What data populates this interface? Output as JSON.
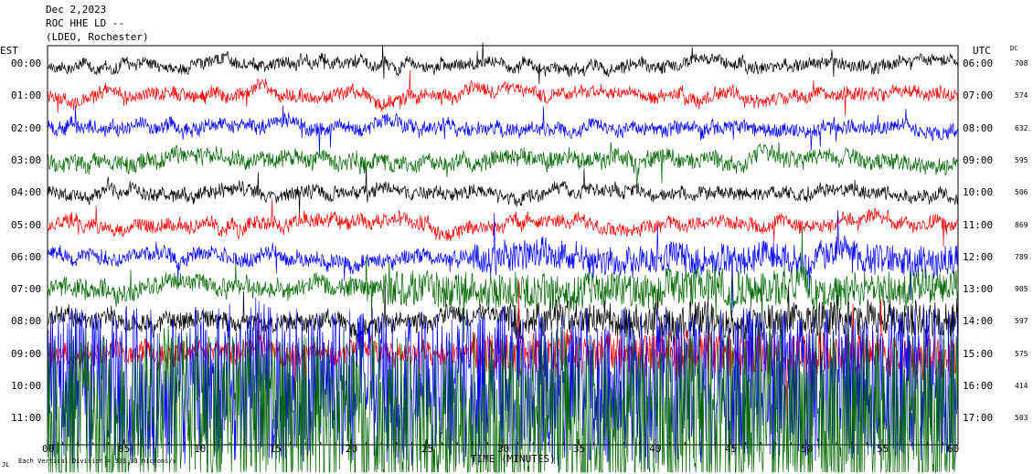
{
  "header": {
    "line1": "Dec 2,2023",
    "line2": "ROC HHE LD --",
    "line3": "(LDEO, Rochester)"
  },
  "chart_data": {
    "type": "line",
    "title": "ROC HHE LD --",
    "date": "Dec 2,2023",
    "network": "(LDEO, Rochester)",
    "left_axis_label": "EST",
    "right_axis_label": "UTC",
    "dc_label": "DC",
    "xlabel": "TIME (MINUTES)",
    "xlim": [
      0,
      60
    ],
    "x_ticks": [
      {
        "value": 0,
        "label": "00"
      },
      {
        "value": 5,
        "label": "05"
      },
      {
        "value": 10,
        "label": "10"
      },
      {
        "value": 15,
        "label": "15"
      },
      {
        "value": 20,
        "label": "20"
      },
      {
        "value": 25,
        "label": "25"
      },
      {
        "value": 30,
        "label": "30"
      },
      {
        "value": 35,
        "label": "35"
      },
      {
        "value": 40,
        "label": "40"
      },
      {
        "value": 45,
        "label": "45"
      },
      {
        "value": 50,
        "label": "50"
      },
      {
        "value": 55,
        "label": "55"
      },
      {
        "value": 60,
        "label": "60"
      }
    ],
    "footer_note": "Each Vertical Division = 333.33 microns/s",
    "corner_mark": "JL",
    "series": [
      {
        "est": "00:00",
        "utc": "06:00",
        "dc": "708",
        "color": "#000000",
        "activity": 1.0,
        "surge_start_min": null
      },
      {
        "est": "01:00",
        "utc": "07:00",
        "dc": "574",
        "color": "#ff0000",
        "activity": 1.1,
        "surge_start_min": null
      },
      {
        "est": "02:00",
        "utc": "08:00",
        "dc": "632",
        "color": "#0000ff",
        "activity": 1.2,
        "surge_start_min": null
      },
      {
        "est": "03:00",
        "utc": "09:00",
        "dc": "595",
        "color": "#006600",
        "activity": 1.5,
        "surge_start_min": null
      },
      {
        "est": "04:00",
        "utc": "10:00",
        "dc": "506",
        "color": "#000000",
        "activity": 1.1,
        "surge_start_min": null
      },
      {
        "est": "05:00",
        "utc": "11:00",
        "dc": "869",
        "color": "#ff0000",
        "activity": 1.2,
        "surge_start_min": null
      },
      {
        "est": "06:00",
        "utc": "12:00",
        "dc": "789",
        "color": "#0000ff",
        "activity": 1.3,
        "surge_start_min": 28
      },
      {
        "est": "07:00",
        "utc": "13:00",
        "dc": "905",
        "color": "#006600",
        "activity": 1.6,
        "surge_start_min": 22
      },
      {
        "est": "08:00",
        "utc": "14:00",
        "dc": "597",
        "color": "#000000",
        "activity": 1.6,
        "surge_start_min": 30
      },
      {
        "est": "09:00",
        "utc": "15:00",
        "dc": "575",
        "color": "#ff0000",
        "activity": 2.0,
        "surge_start_min": 28
      },
      {
        "est": "10:00",
        "utc": "16:00",
        "dc": "414",
        "color": "#0000ff",
        "activity": 4.5,
        "surge_start_min": 0
      },
      {
        "est": "11:00",
        "utc": "17:00",
        "dc": "503",
        "color": "#006600",
        "activity": 5.0,
        "surge_start_min": 0
      }
    ]
  }
}
